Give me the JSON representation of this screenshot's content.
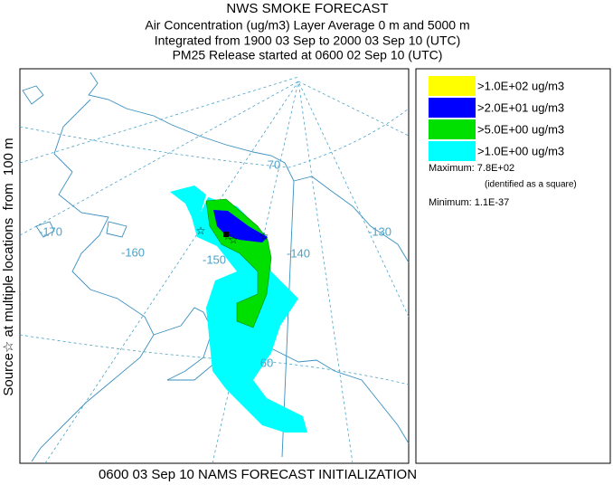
{
  "header": {
    "title": "NWS SMOKE FORECAST",
    "lines": [
      "Air Concentration (ug/m3) Layer Average    0 m and  5000 m",
      "Integrated from 1900 03 Sep to 2000 03 Sep 10 (UTC)",
      "PM25 Release started at 0600 02 Sep 10 (UTC)"
    ]
  },
  "side_label": "Source☆ at multiple locations  from  100 m",
  "footer": "0600 03 Sep 10 NAMS FORECAST INITIALIZATION",
  "legend": {
    "items": [
      {
        "label": ">1.0E+02 ug/m3",
        "color": "#ffff00"
      },
      {
        "label": ">2.0E+01 ug/m3",
        "color": "#0000ff"
      },
      {
        "label": ">5.0E+00 ug/m3",
        "color": "#00e000"
      },
      {
        "label": ">1.0E+00 ug/m3",
        "color": "#00ffff"
      }
    ],
    "maximum": "Maximum: 7.8E+02",
    "maximum_note": "(identified as a square)",
    "minimum": "Minimum: 1.1E-37"
  },
  "map": {
    "longitude_labels": [
      "-170",
      "-160",
      "-150",
      "-140",
      "-130"
    ],
    "latitude_labels": [
      "70",
      "60"
    ]
  }
}
